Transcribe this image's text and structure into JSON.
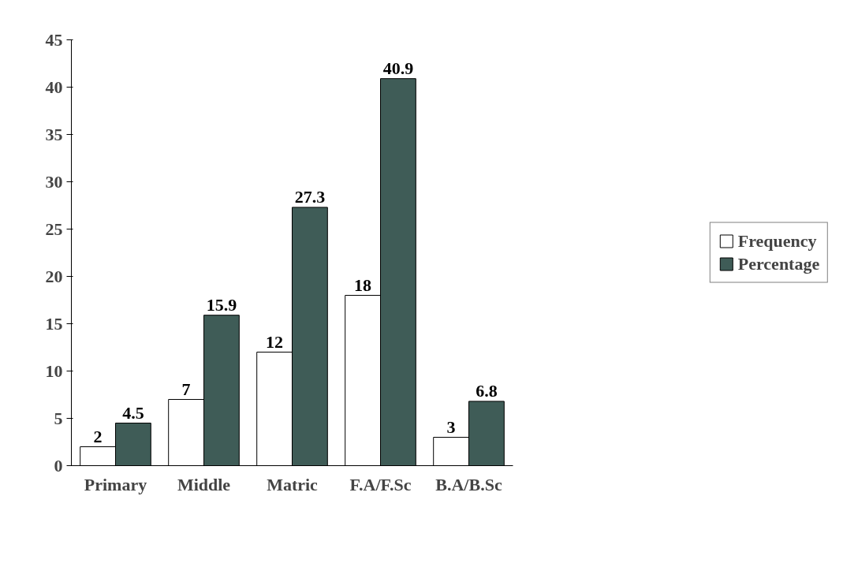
{
  "chart_data": {
    "type": "bar",
    "categories": [
      "Primary",
      "Middle",
      "Matric",
      "F.A/F.Sc",
      "B.A/B.Sc"
    ],
    "series": [
      {
        "name": "Frequency",
        "color": "#ffffff",
        "values": [
          2,
          7,
          12,
          18,
          3
        ]
      },
      {
        "name": "Percentage",
        "color": "#3f5c57",
        "values": [
          4.5,
          15.9,
          27.3,
          40.9,
          6.8
        ]
      }
    ],
    "ylim": [
      0,
      45
    ],
    "yticks": [
      0,
      5,
      10,
      15,
      20,
      25,
      30,
      35,
      40,
      45
    ],
    "grid": false,
    "legend": "right",
    "data_labels": true
  }
}
